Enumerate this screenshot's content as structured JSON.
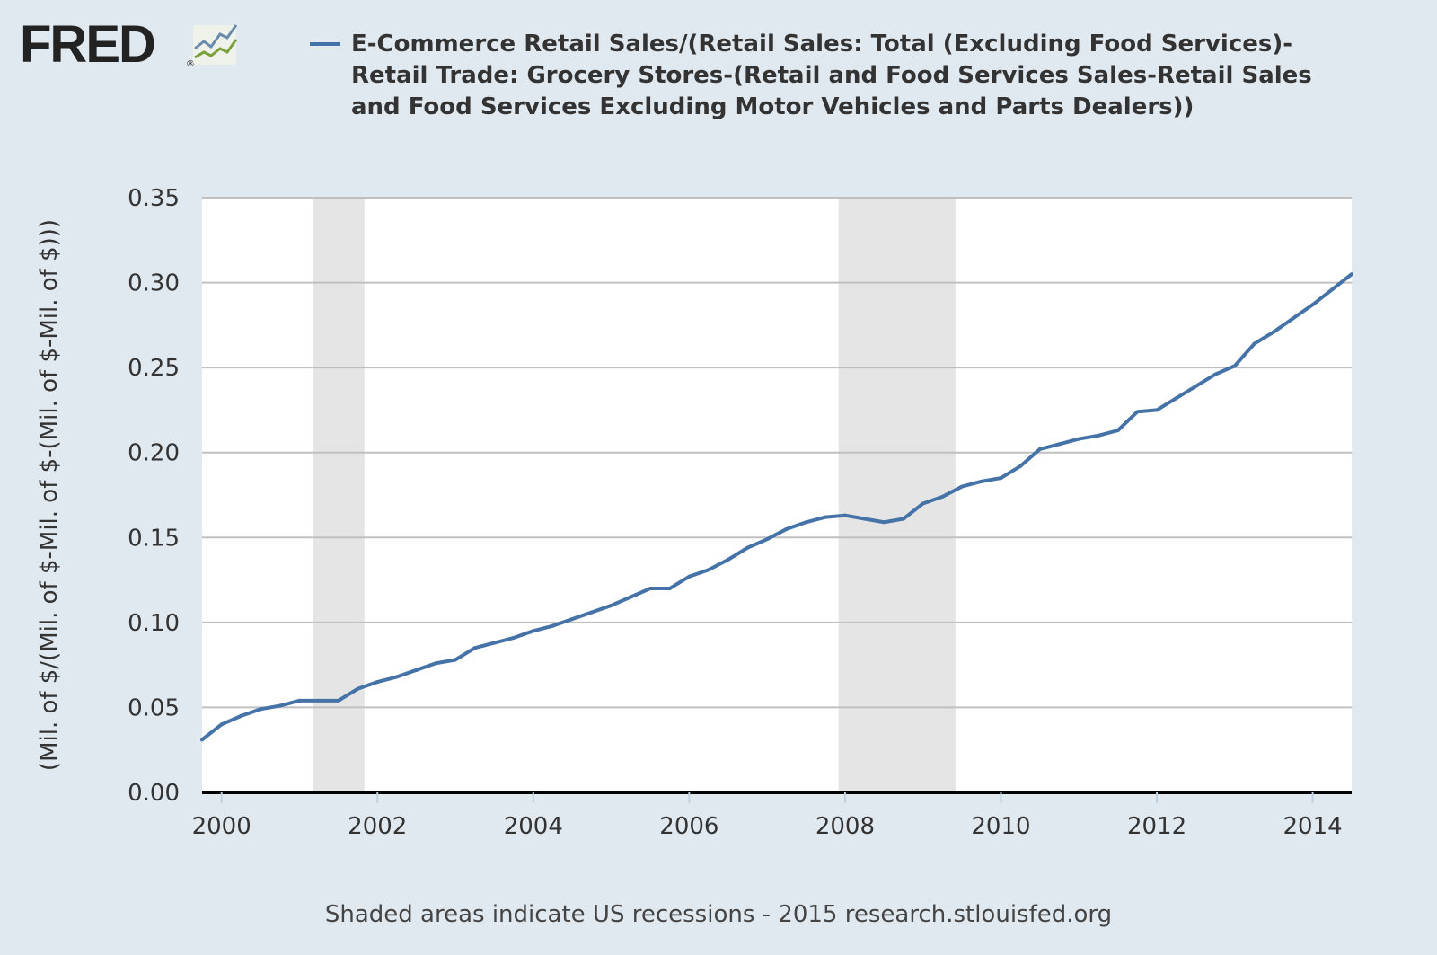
{
  "logo": {
    "text": "FRED",
    "registered": "®"
  },
  "chart_data": {
    "type": "line",
    "title": "",
    "xlabel": "",
    "ylabel": "(Mil. of $/(Mil. of $-Mil. of $-(Mil. of $-Mil. of $)))",
    "ylim": [
      0,
      0.35
    ],
    "xlim": [
      "1999-10-01",
      "2014-07-01"
    ],
    "grid": true,
    "legend_placement": "top",
    "yticks": [
      "0.00",
      "0.05",
      "0.10",
      "0.15",
      "0.20",
      "0.25",
      "0.30",
      "0.35"
    ],
    "xticks": [
      "2000",
      "2002",
      "2004",
      "2006",
      "2008",
      "2010",
      "2012",
      "2014"
    ],
    "recessions": [
      [
        "2001-03-01",
        "2001-11-01"
      ],
      [
        "2007-12-01",
        "2009-06-01"
      ]
    ],
    "colors": {
      "line": "#4572a7",
      "recession": "#e5e5e5",
      "grid": "#c0c0c0"
    },
    "series": [
      {
        "name": "E-Commerce Retail Sales/(Retail Sales: Total (Excluding Food Services)-Retail Trade: Grocery Stores-(Retail and Food Services Sales-Retail Sales and Food Services Excluding Motor Vehicles and Parts Dealers))",
        "frequency": "quarterly",
        "start": "1999-10-01",
        "values": [
          0.031,
          0.04,
          0.045,
          0.049,
          0.051,
          0.054,
          0.054,
          0.054,
          0.061,
          0.065,
          0.068,
          0.072,
          0.076,
          0.078,
          0.085,
          0.088,
          0.091,
          0.095,
          0.098,
          0.102,
          0.106,
          0.11,
          0.115,
          0.12,
          0.12,
          0.127,
          0.131,
          0.137,
          0.144,
          0.149,
          0.155,
          0.159,
          0.162,
          0.163,
          0.161,
          0.159,
          0.161,
          0.17,
          0.174,
          0.18,
          0.183,
          0.185,
          0.192,
          0.202,
          0.205,
          0.208,
          0.21,
          0.213,
          0.224,
          0.225,
          0.232,
          0.239,
          0.246,
          0.251,
          0.264,
          0.271,
          0.279,
          0.287,
          0.296,
          0.305
        ]
      }
    ]
  },
  "footer": "Shaded areas indicate US recessions - 2015 research.stlouisfed.org"
}
